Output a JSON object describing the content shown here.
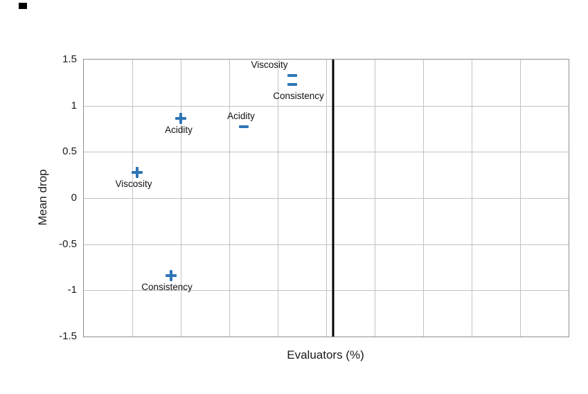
{
  "chart_data": {
    "type": "scatter",
    "title": "",
    "xlabel": "Evaluators (%)",
    "ylabel": "Mean drop",
    "xlim": [
      0,
      100
    ],
    "ylim": [
      -1.5,
      1.5
    ],
    "x_grid_step": 10,
    "y_ticks": [
      1.5,
      1,
      0.5,
      0,
      -0.5,
      -1,
      -1.5
    ],
    "y_tick_labels": [
      "1.5",
      "1",
      "0.5",
      "0",
      "-0.5",
      "-1",
      "-1.5"
    ],
    "grid": true,
    "legend": "none",
    "marker_color": "#2e75b6",
    "reference_line": {
      "x": 51.4,
      "color": "#000000"
    },
    "points": [
      {
        "attribute": "Viscosity",
        "marker": "plus",
        "x": 11,
        "y": 0.28,
        "label_side": "below",
        "label_offset_x": -5
      },
      {
        "attribute": "Acidity",
        "marker": "plus",
        "x": 20,
        "y": 0.86,
        "label_side": "below",
        "label_offset_x": -3
      },
      {
        "attribute": "Consistency",
        "marker": "plus",
        "x": 18,
        "y": -0.84,
        "label_side": "below",
        "label_offset_x": -6
      },
      {
        "attribute": "Acidity",
        "marker": "minus",
        "x": 33,
        "y": 0.77,
        "label_side": "above",
        "label_offset_x": -4
      },
      {
        "attribute": "Viscosity",
        "marker": "minus",
        "x": 43,
        "y": 1.33,
        "label_side": "above",
        "label_offset_x": -33
      },
      {
        "attribute": "Consistency",
        "marker": "minus",
        "x": 43,
        "y": 1.23,
        "label_side": "below",
        "label_offset_x": 9
      }
    ]
  }
}
